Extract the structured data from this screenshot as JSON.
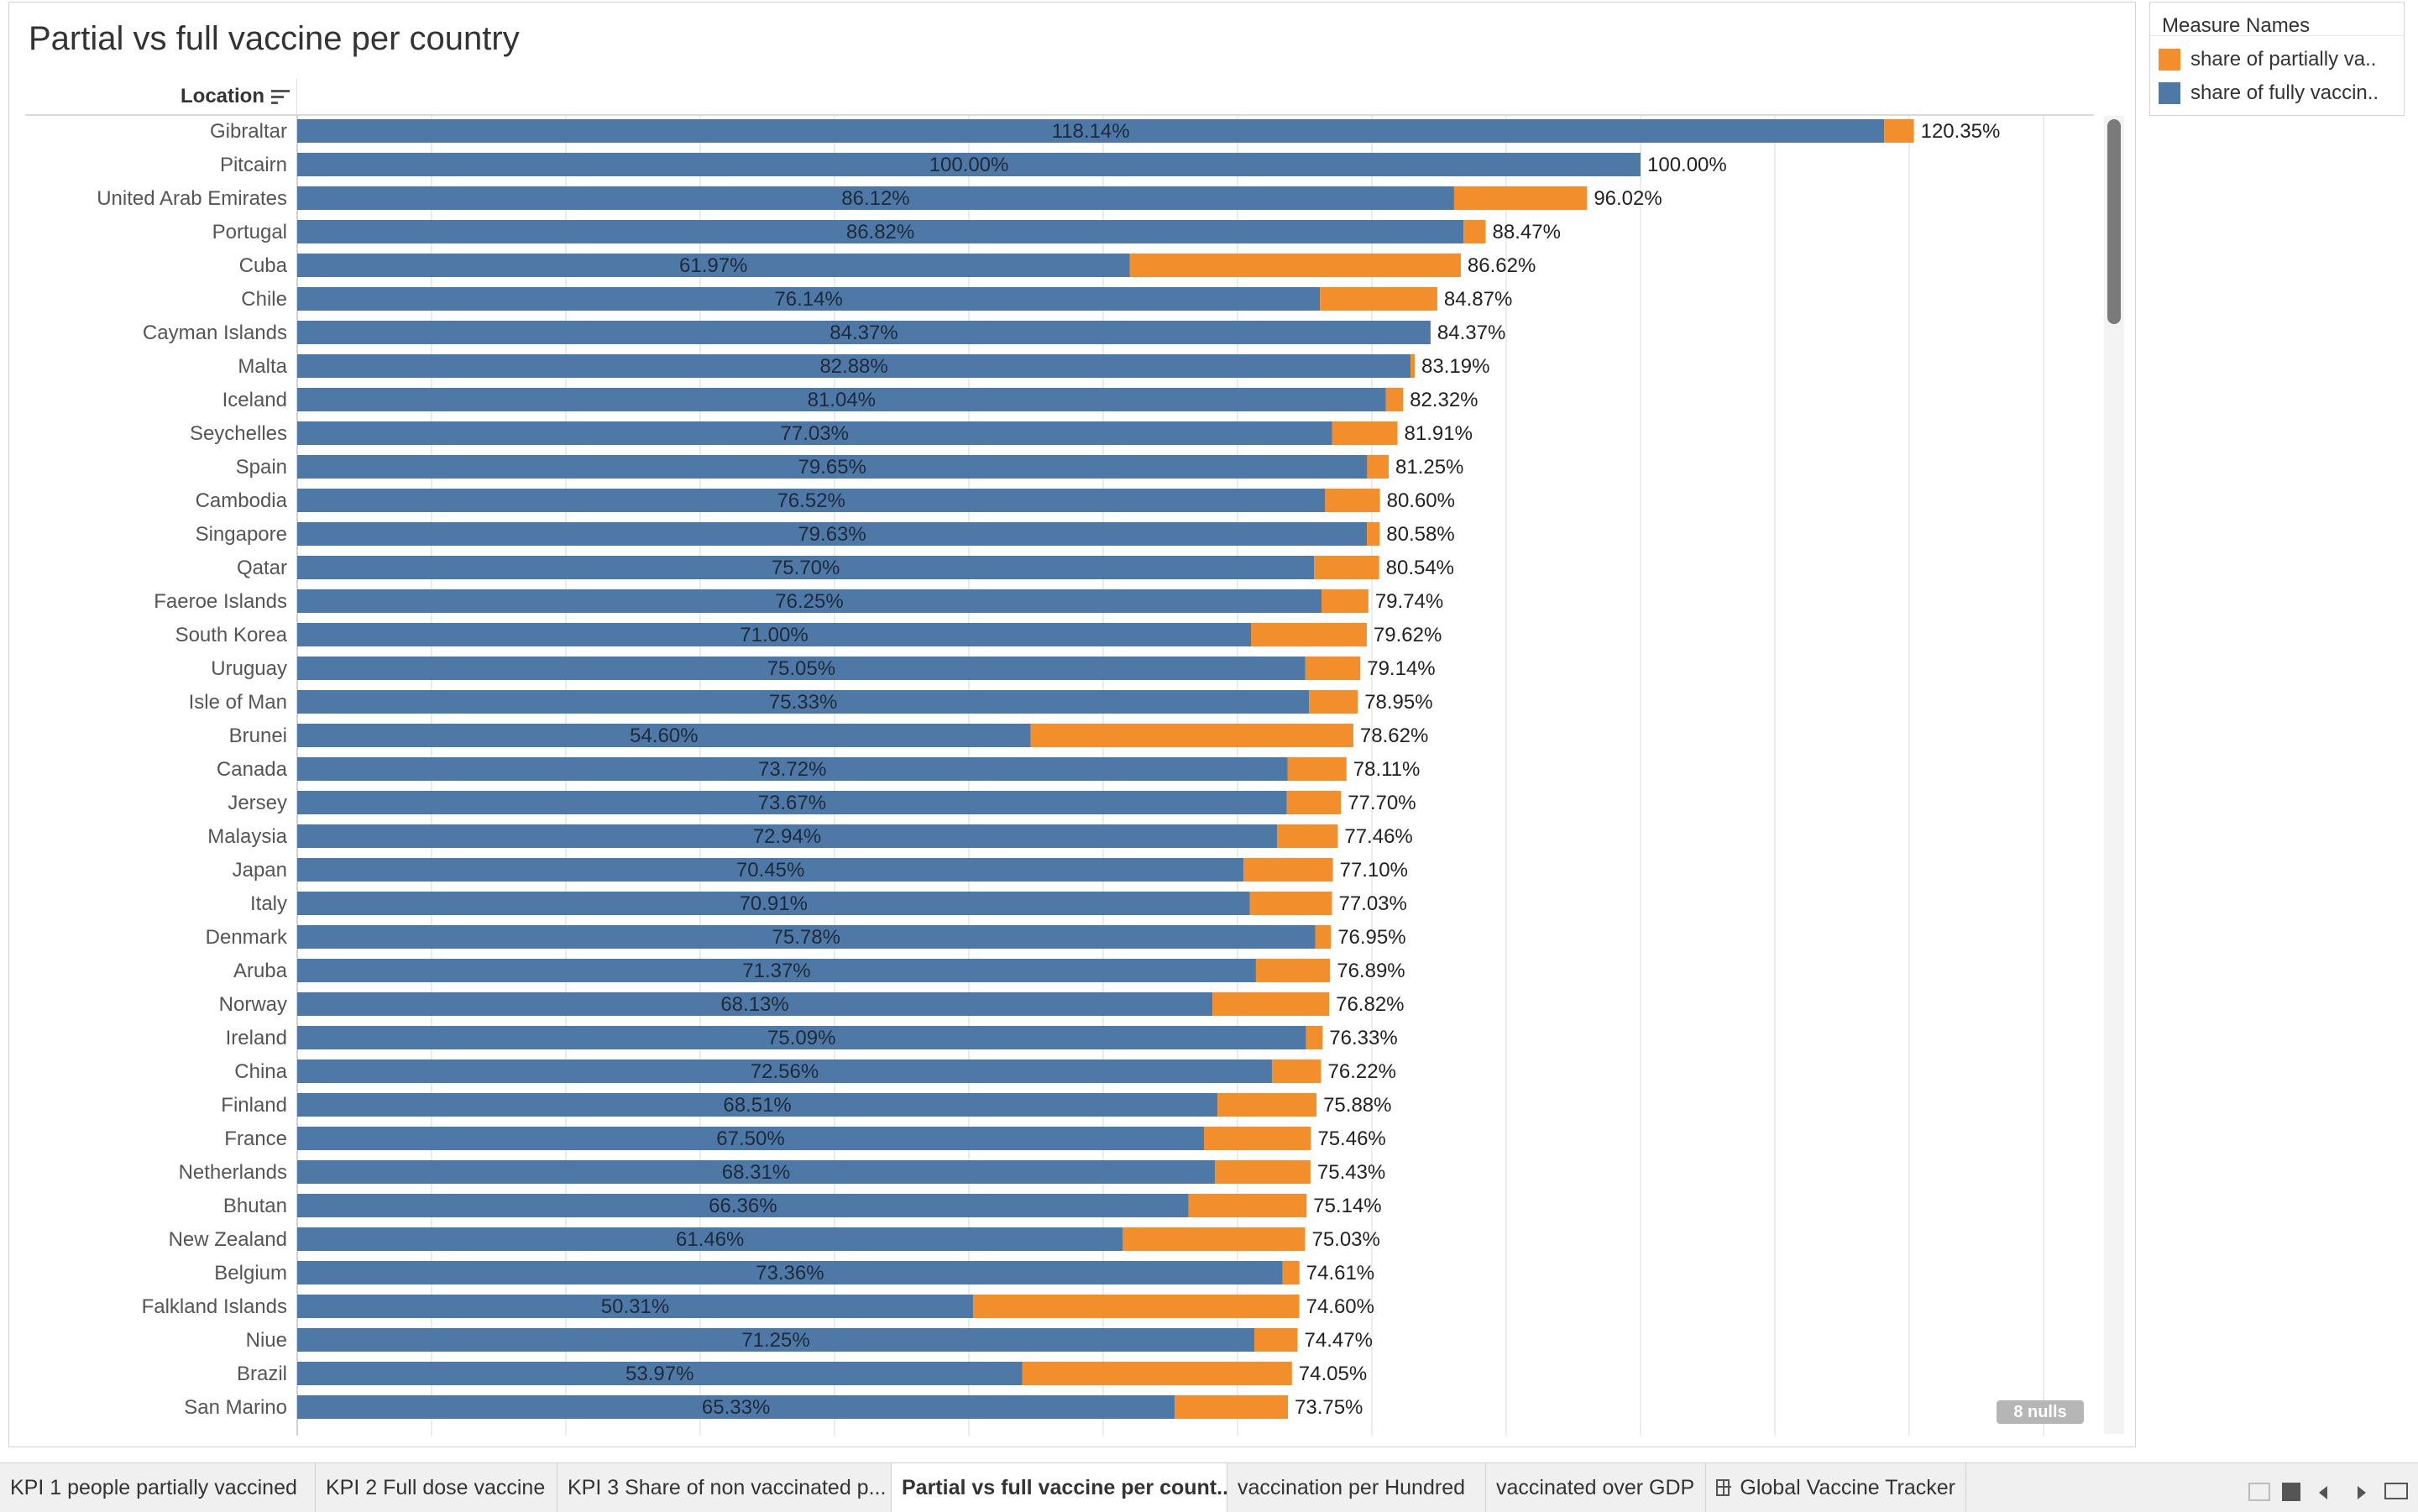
{
  "title": "Partial vs full vaccine per country",
  "header": {
    "location_label": "Location"
  },
  "legend": {
    "title": "Measure Names",
    "items": [
      {
        "label": "share of  partially va..",
        "color": "#f28e2b"
      },
      {
        "label": "share of fully  vaccin..",
        "color": "#4e79a7"
      }
    ]
  },
  "nulls_label": "8 nulls",
  "chart_data": {
    "type": "bar",
    "orientation": "horizontal",
    "stacked": true,
    "categories": [
      "Gibraltar",
      "Pitcairn",
      "United Arab Emirates",
      "Portugal",
      "Cuba",
      "Chile",
      "Cayman Islands",
      "Malta",
      "Iceland",
      "Seychelles",
      "Spain",
      "Cambodia",
      "Singapore",
      "Qatar",
      "Faeroe Islands",
      "South Korea",
      "Uruguay",
      "Isle of Man",
      "Brunei",
      "Canada",
      "Jersey",
      "Malaysia",
      "Japan",
      "Italy",
      "Denmark",
      "Aruba",
      "Norway",
      "Ireland",
      "China",
      "Finland",
      "France",
      "Netherlands",
      "Bhutan",
      "New Zealand",
      "Belgium",
      "Falkland Islands",
      "Niue",
      "Brazil",
      "San Marino"
    ],
    "series": [
      {
        "name": "share of fully  vaccin..",
        "color": "#4e79a7",
        "values": [
          118.14,
          100.0,
          86.12,
          86.82,
          61.97,
          76.14,
          84.37,
          82.88,
          81.04,
          77.03,
          79.65,
          76.52,
          79.63,
          75.7,
          76.25,
          71.0,
          75.05,
          75.33,
          54.6,
          73.72,
          73.67,
          72.94,
          70.45,
          70.91,
          75.78,
          71.37,
          68.13,
          75.09,
          72.56,
          68.51,
          67.5,
          68.31,
          66.36,
          61.46,
          73.36,
          50.31,
          71.25,
          53.97,
          65.33
        ],
        "labels": [
          "118.14%",
          "100.00%",
          "86.12%",
          "86.82%",
          "61.97%",
          "76.14%",
          "84.37%",
          "82.88%",
          "81.04%",
          "77.03%",
          "79.65%",
          "76.52%",
          "79.63%",
          "75.70%",
          "76.25%",
          "71.00%",
          "75.05%",
          "75.33%",
          "54.60%",
          "73.72%",
          "73.67%",
          "72.94%",
          "70.45%",
          "70.91%",
          "75.78%",
          "71.37%",
          "68.13%",
          "75.09%",
          "72.56%",
          "68.51%",
          "67.50%",
          "68.31%",
          "66.36%",
          "61.46%",
          "73.36%",
          "50.31%",
          "71.25%",
          "53.97%",
          "65.33%"
        ]
      },
      {
        "name": "share of  partially va..",
        "color": "#f28e2b",
        "values": [
          2.21,
          0.0,
          9.9,
          1.65,
          24.65,
          8.73,
          0.0,
          0.31,
          1.28,
          4.88,
          1.6,
          4.08,
          0.95,
          4.84,
          3.49,
          8.62,
          4.09,
          3.62,
          24.02,
          4.39,
          4.03,
          4.52,
          6.65,
          6.12,
          1.17,
          5.52,
          8.69,
          1.24,
          3.66,
          7.37,
          7.96,
          7.12,
          8.78,
          13.57,
          1.25,
          24.29,
          3.22,
          20.08,
          8.42
        ]
      }
    ],
    "totals": [
      120.35,
      100.0,
      96.02,
      88.47,
      86.62,
      84.87,
      84.37,
      83.19,
      82.32,
      81.91,
      81.25,
      80.6,
      80.58,
      80.54,
      79.74,
      79.62,
      79.14,
      78.95,
      78.62,
      78.11,
      77.7,
      77.46,
      77.1,
      77.03,
      76.95,
      76.89,
      76.82,
      76.33,
      76.22,
      75.88,
      75.46,
      75.43,
      75.14,
      75.03,
      74.61,
      74.6,
      74.47,
      74.05,
      73.75
    ],
    "total_labels": [
      "120.35%",
      "100.00%",
      "96.02%",
      "88.47%",
      "86.62%",
      "84.87%",
      "84.37%",
      "83.19%",
      "82.32%",
      "81.91%",
      "81.25%",
      "80.60%",
      "80.58%",
      "80.54%",
      "79.74%",
      "79.62%",
      "79.14%",
      "78.95%",
      "78.62%",
      "78.11%",
      "77.70%",
      "77.46%",
      "77.10%",
      "77.03%",
      "76.95%",
      "76.89%",
      "76.82%",
      "76.33%",
      "76.22%",
      "75.88%",
      "75.46%",
      "75.43%",
      "75.14%",
      "75.03%",
      "74.61%",
      "74.60%",
      "74.47%",
      "74.05%",
      "73.75%"
    ],
    "xlim": [
      0,
      130
    ],
    "grid": true,
    "legend_position": "top-right"
  },
  "tabs": [
    {
      "label": "KPI 1 people partially vaccined",
      "active": false
    },
    {
      "label": "KPI 2 Full dose vaccine",
      "active": false
    },
    {
      "label": "KPI 3 Share of non vaccinated p...",
      "active": false
    },
    {
      "label": "Partial vs full vaccine per count...",
      "active": true
    },
    {
      "label": "vaccination per Hundred",
      "active": false
    },
    {
      "label": "vaccinated over GDP",
      "active": false
    },
    {
      "label": "Global Vaccine Tracker",
      "active": false,
      "icon": "grid-icon"
    }
  ]
}
